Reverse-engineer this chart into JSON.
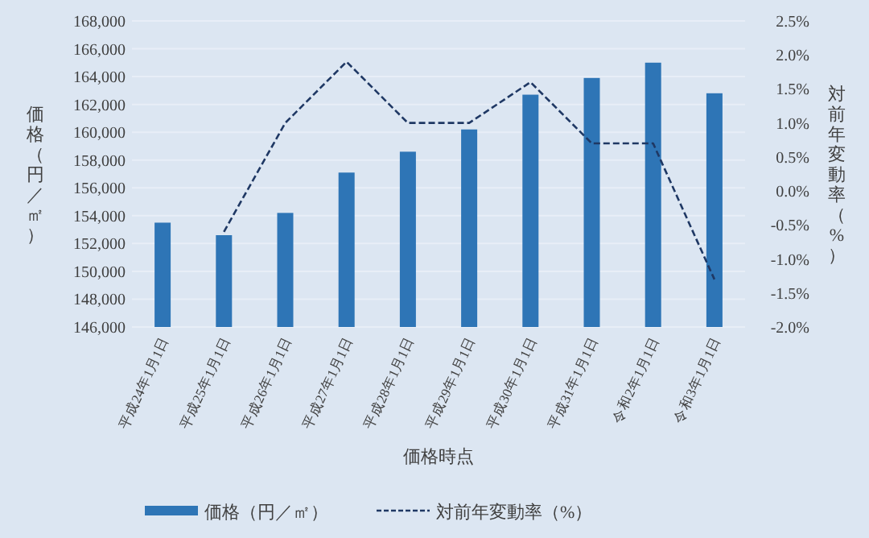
{
  "chart_data": {
    "type": "bar",
    "categories": [
      "平成24年1月1日",
      "平成25年1月1日",
      "平成26年1月1日",
      "平成27年1月1日",
      "平成28年1月1日",
      "平成29年1月1日",
      "平成30年1月1日",
      "平成31年1月1日",
      "令和2年1月1日",
      "令和3年1月1日"
    ],
    "series": [
      {
        "name": "価格（円／㎡）",
        "color": "#2e75b6",
        "values": [
          153500,
          152600,
          154200,
          157100,
          158600,
          160200,
          162700,
          163900,
          165000,
          162800
        ]
      },
      {
        "name": "対前年変動率（%）",
        "type": "line",
        "axis": "y2",
        "color": "#1f3864",
        "line_style": "dashed",
        "marker": "none",
        "values": [
          null,
          -0.6,
          1.0,
          1.9,
          1.0,
          1.0,
          1.6,
          0.7,
          0.7,
          -1.3
        ]
      }
    ],
    "xlabel": "価格時点",
    "ylabel": "価格（円／㎡）",
    "y2label": "対前年変動率（%）",
    "ylim": [
      146000,
      168000
    ],
    "yticks": [
      {
        "value": 146000,
        "label": "146,000"
      },
      {
        "value": 148000,
        "label": "148,000"
      },
      {
        "value": 150000,
        "label": "150,000"
      },
      {
        "value": 152000,
        "label": "152,000"
      },
      {
        "value": 154000,
        "label": "154,000"
      },
      {
        "value": 156000,
        "label": "156,000"
      },
      {
        "value": 158000,
        "label": "158,000"
      },
      {
        "value": 160000,
        "label": "160,000"
      },
      {
        "value": 162000,
        "label": "162,000"
      },
      {
        "value": 164000,
        "label": "164,000"
      },
      {
        "value": 166000,
        "label": "166,000"
      },
      {
        "value": 168000,
        "label": "168,000"
      }
    ],
    "y2lim": [
      -2.0,
      2.5
    ],
    "y2ticks": [
      {
        "value": -2.0,
        "label": "-2.0%"
      },
      {
        "value": -1.5,
        "label": "-1.5%"
      },
      {
        "value": -1.0,
        "label": "-1.0%"
      },
      {
        "value": -0.5,
        "label": "-0.5%"
      },
      {
        "value": 0.0,
        "label": "0.0%"
      },
      {
        "value": 0.5,
        "label": "0.5%"
      },
      {
        "value": 1.0,
        "label": "1.0%"
      },
      {
        "value": 1.5,
        "label": "1.5%"
      },
      {
        "value": 2.0,
        "label": "2.0%"
      },
      {
        "value": 2.5,
        "label": "2.5%"
      }
    ],
    "grid": "y",
    "legend": "bottom"
  }
}
